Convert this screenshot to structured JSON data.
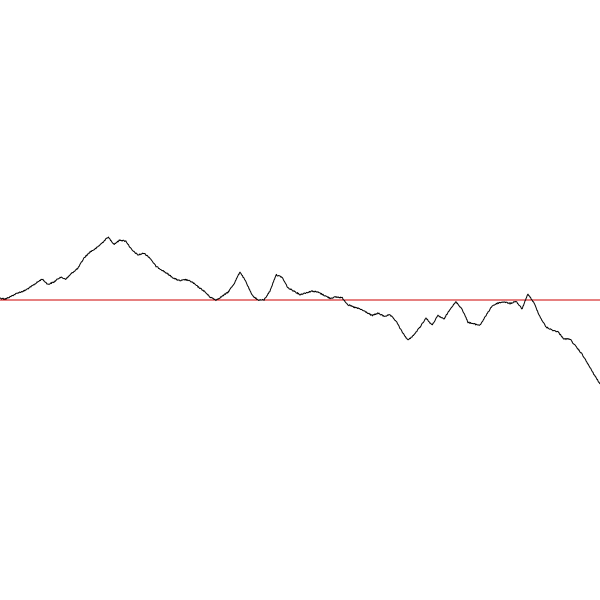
{
  "chart_data": {
    "type": "line",
    "title": "",
    "xlabel": "",
    "ylabel": "",
    "axes_visible": false,
    "grid": false,
    "legend": "none",
    "xlim": [
      0,
      100
    ],
    "ylim": [
      -50,
      50
    ],
    "series": [
      {
        "color": "#000000",
        "x": [
          0,
          1,
          2,
          3,
          4,
          5,
          6,
          7,
          8,
          9,
          10,
          11,
          12,
          13,
          14,
          15,
          16,
          17,
          18,
          19,
          20,
          21,
          22,
          23,
          24,
          25,
          26,
          27,
          28,
          29,
          30,
          31,
          32,
          33,
          34,
          35,
          36,
          37,
          38,
          39,
          40,
          41,
          42,
          43,
          44,
          45,
          46,
          47,
          48,
          49,
          50,
          51,
          52,
          53,
          54,
          55,
          56,
          57,
          58,
          59,
          60,
          61,
          62,
          63,
          64,
          65,
          66,
          67,
          68,
          69,
          70,
          71,
          72,
          73,
          74,
          75,
          76,
          77,
          78,
          79,
          80,
          81,
          82,
          83,
          84,
          85,
          86,
          87,
          88,
          89,
          90,
          91,
          92,
          93,
          94,
          95,
          96,
          97,
          98,
          99,
          100
        ],
        "y": [
          0.3,
          0.2,
          0.7,
          1.2,
          1.5,
          2.1,
          2.8,
          3.5,
          2.6,
          3.0,
          3.8,
          3.5,
          4.5,
          5.3,
          7.0,
          8.0,
          8.6,
          9.5,
          10.5,
          9.3,
          10.0,
          9.8,
          8.3,
          7.5,
          7.8,
          7.0,
          5.6,
          5.0,
          4.3,
          3.6,
          3.2,
          3.4,
          3.0,
          2.2,
          1.5,
          0.5,
          0.0,
          0.6,
          1.3,
          2.7,
          4.7,
          3.0,
          0.8,
          0.0,
          0.0,
          1.5,
          4.2,
          3.8,
          2.0,
          1.5,
          0.9,
          1.2,
          1.5,
          1.3,
          0.8,
          0.3,
          0.5,
          0.4,
          -0.8,
          -1.2,
          -1.5,
          -2.0,
          -2.6,
          -2.2,
          -2.7,
          -2.5,
          -3.5,
          -5.3,
          -6.7,
          -5.8,
          -4.5,
          -3.0,
          -4.2,
          -2.6,
          -3.2,
          -1.5,
          -0.3,
          -1.5,
          -3.7,
          -4.0,
          -4.2,
          -2.6,
          -1.0,
          -0.5,
          -0.3,
          -0.6,
          -0.2,
          -1.5,
          1.0,
          -0.5,
          -2.8,
          -4.5,
          -5.0,
          -5.3,
          -6.5,
          -6.5,
          -7.8,
          -9.0,
          -10.7,
          -12.4,
          -14.0
        ]
      }
    ],
    "reference_lines": [
      {
        "orientation": "horizontal",
        "y": 0,
        "color": "#cc0000"
      }
    ]
  }
}
